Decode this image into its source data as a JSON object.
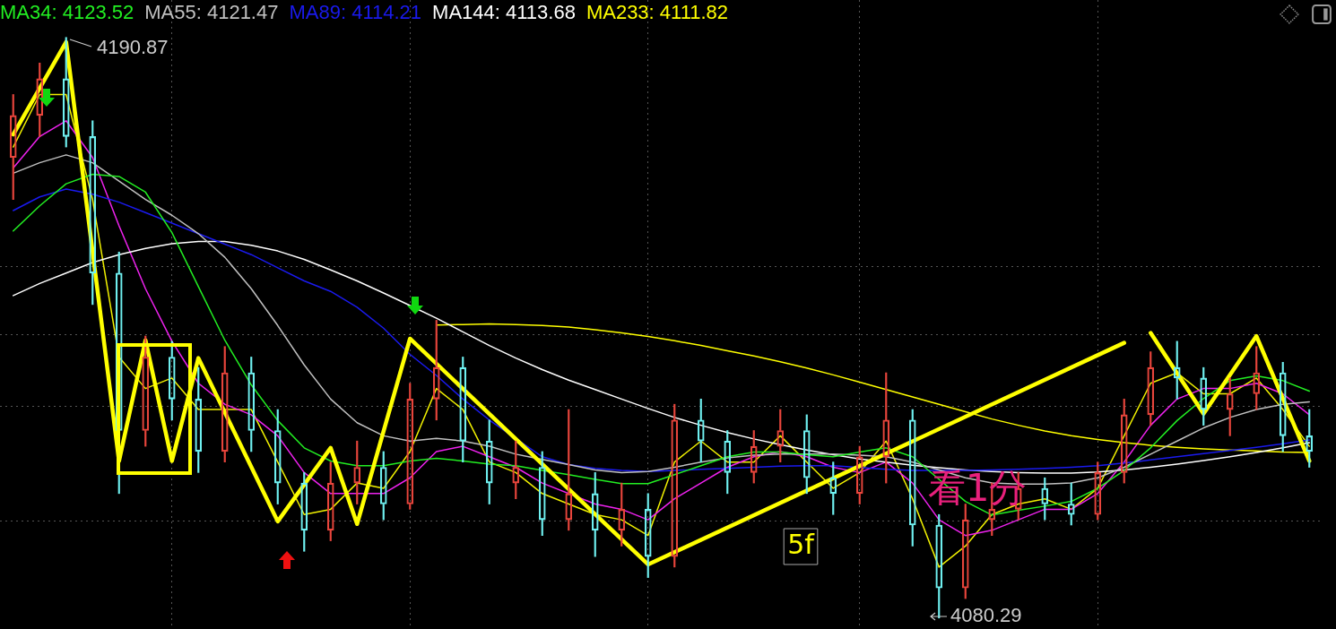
{
  "chart_data": {
    "type": "candlestick",
    "categories": [
      null,
      null,
      null,
      null,
      null,
      null,
      null,
      null,
      null,
      null,
      null,
      null,
      null,
      null,
      null,
      null,
      null,
      null,
      null,
      null,
      null,
      null,
      null,
      null,
      null,
      null,
      null,
      null,
      null,
      null,
      null,
      null,
      null,
      null,
      null,
      null,
      null,
      null,
      null,
      null,
      null,
      null,
      null,
      null,
      null,
      null,
      null,
      null,
      null,
      null
    ],
    "ohlc": [
      [
        4168,
        4180,
        4160,
        4176
      ],
      [
        4176,
        4186,
        4172,
        4183
      ],
      [
        4183,
        4190.87,
        4170,
        4172
      ],
      [
        4172,
        4175,
        4140,
        4146
      ],
      [
        4146,
        4150,
        4104,
        4116
      ],
      [
        4116,
        4134,
        4113,
        4130
      ],
      [
        4130,
        4133,
        4118,
        4122
      ],
      [
        4122,
        4128,
        4108,
        4112
      ],
      [
        4112,
        4132,
        4110,
        4127
      ],
      [
        4127,
        4130,
        4112,
        4116
      ],
      [
        4116,
        4120,
        4102,
        4106
      ],
      [
        4106,
        4108,
        4093,
        4097
      ],
      [
        4097,
        4110,
        4095,
        4106
      ],
      [
        4106,
        4114,
        4102,
        4109
      ],
      [
        4109,
        4112,
        4099,
        4102
      ],
      [
        4102,
        4125,
        4101,
        4122
      ],
      [
        4122,
        4137,
        4118,
        4128
      ],
      [
        4128,
        4130,
        4110,
        4114
      ],
      [
        4114,
        4118,
        4102,
        4106
      ],
      [
        4106,
        4114,
        4103,
        4109
      ],
      [
        4109,
        4112,
        4096,
        4099
      ],
      [
        4099,
        4120,
        4097,
        4104
      ],
      [
        4104,
        4108,
        4092,
        4097
      ],
      [
        4097,
        4106,
        4094,
        4101
      ],
      [
        4101,
        4104,
        4088,
        4092
      ],
      [
        4092,
        4121,
        4090,
        4118
      ],
      [
        4118,
        4122,
        4110,
        4114
      ],
      [
        4114,
        4116,
        4104,
        4108
      ],
      [
        4108,
        4116,
        4106,
        4113
      ],
      [
        4113,
        4120,
        4110,
        4116
      ],
      [
        4116,
        4119,
        4104,
        4107
      ],
      [
        4107,
        4110,
        4100,
        4104
      ],
      [
        4104,
        4113,
        4102,
        4111
      ],
      [
        4111,
        4127,
        4106,
        4118
      ],
      [
        4118,
        4120,
        4094,
        4098
      ],
      [
        4098,
        4100,
        4080.29,
        4086
      ],
      [
        4086,
        4102,
        4084,
        4099
      ],
      [
        4099,
        4106,
        4096,
        4101
      ],
      [
        4101,
        4108,
        4099,
        4105
      ],
      [
        4105,
        4107,
        4099,
        4102
      ],
      [
        4102,
        4106,
        4098,
        4100
      ],
      [
        4100,
        4110,
        4099,
        4108
      ],
      [
        4108,
        4122,
        4106,
        4119
      ],
      [
        4119,
        4131,
        4117,
        4128
      ],
      [
        4128,
        4133,
        4122,
        4126
      ],
      [
        4126,
        4128,
        4117,
        4120
      ],
      [
        4120,
        4126,
        4115,
        4123
      ],
      [
        4123,
        4132,
        4120,
        4127
      ],
      [
        4127,
        4129,
        4112,
        4115
      ],
      [
        4115,
        4120,
        4109,
        4112
      ]
    ],
    "colors": [
      "#e8453c",
      "#e8453c",
      "#6ff0f0",
      "#6ff0f0",
      "#6ff0f0",
      "#e8453c",
      "#6ff0f0",
      "#6ff0f0",
      "#e8453c",
      "#6ff0f0",
      "#6ff0f0",
      "#6ff0f0",
      "#e8453c",
      "#e8453c",
      "#6ff0f0",
      "#e8453c",
      "#e8453c",
      "#6ff0f0",
      "#6ff0f0",
      "#e8453c",
      "#6ff0f0",
      "#e8453c",
      "#6ff0f0",
      "#e8453c",
      "#6ff0f0",
      "#e8453c",
      "#6ff0f0",
      "#6ff0f0",
      "#e8453c",
      "#e8453c",
      "#6ff0f0",
      "#6ff0f0",
      "#e8453c",
      "#e8453c",
      "#6ff0f0",
      "#6ff0f0",
      "#e8453c",
      "#e8453c",
      "#e8453c",
      "#6ff0f0",
      "#6ff0f0",
      "#e8453c",
      "#e8453c",
      "#e8453c",
      "#6ff0f0",
      "#6ff0f0",
      "#e8453c",
      "#e8453c",
      "#6ff0f0",
      "#6ff0f0"
    ],
    "series": [
      {
        "type": "line",
        "name": "MA34: 4123.52",
        "color": "#22ee22",
        "values": [
          4154.0,
          4158.8,
          4163.0,
          4164.8,
          4164.4,
          4161.4,
          4153.7,
          4143.4,
          4133.2,
          4124.7,
          4117.9,
          4112.7,
          4110.2,
          4109.3,
          4109.3,
          4110.2,
          4110.7,
          4110.2,
          4109.6,
          4109.3,
          4108.4,
          4107.6,
          4106.7,
          4105.9,
          4105.9,
          4107.6,
          4109.3,
          4111.0,
          4111.9,
          4111.9,
          4111.4,
          4111.0,
          4111.9,
          4112.7,
          4111.0,
          4106.7,
          4102.5,
          4099.9,
          4100.8,
          4101.6,
          4102.5,
          4105.0,
          4108.4,
          4112.7,
          4117.9,
          4122.1,
          4125.5,
          4126.4,
          4125.5,
          4123.52
        ]
      },
      {
        "type": "line",
        "name": "MA55: 4121.47",
        "color": "#c0c0c0",
        "values": [
          4165,
          4167,
          4168.5,
          4167,
          4163.5,
          4160,
          4157,
          4153.5,
          4149,
          4143,
          4136,
          4128.5,
          4122,
          4117.5,
          4115,
          4114,
          4114.5,
          4114,
          4113,
          4111.5,
          4110.5,
          4109.5,
          4108.5,
          4108,
          4108.2,
          4109,
          4110,
          4110.8,
          4111.3,
          4111.5,
          4111.5,
          4111.5,
          4111.3,
          4111,
          4110,
          4108.5,
          4107,
          4106,
          4105.8,
          4105.8,
          4106,
          4107,
          4109,
          4111.5,
          4114,
          4116.5,
          4118.5,
          4120,
          4121,
          4121.47
        ]
      },
      {
        "type": "line",
        "name": "MA89: 4114.21",
        "color": "#1a1aee",
        "values": [
          4157.9,
          4160.5,
          4162.0,
          4161.0,
          4159.5,
          4157.5,
          4155.5,
          4153.5,
          4151.5,
          4149.5,
          4147.0,
          4144.5,
          4142.5,
          4139.5,
          4135.5,
          4130.5,
          4126.5,
          4122.0,
          4118.0,
          null,
          4111.0,
          4109.5,
          4108.8,
          4108.4,
          4108.2,
          4108.4,
          4108.6,
          4108.8,
          4109.0,
          4109.2,
          4109.3,
          4109.3,
          null,
          4108.6,
          4108.4,
          4108.4,
          4108.4,
          4108.5,
          4108.6,
          4108.8,
          4109.0,
          4109.3,
          4109.8,
          4110.4,
          4111.0,
          4111.6,
          4112.2,
          4112.8,
          4113.5,
          4114.21
        ]
      },
      {
        "type": "line",
        "name": "MA144: 4113.68",
        "color": "#ffffff",
        "values": [
          4141.7,
          4144,
          4146,
          4148,
          4149.5,
          4150.7,
          4151.6,
          4152.0,
          4152.0,
          4151.3,
          4150.2,
          4148.6,
          4146.6,
          4144.5,
          4142.2,
          4139.8,
          4137.4,
          4134.8,
          4132.2,
          4129.8,
          4127.6,
          4125.6,
          4123.8,
          4122.0,
          4120.2,
          4118.5,
          4117.0,
          4115.6,
          4114.4,
          4113.3,
          4112.3,
          4111.4,
          4110.6,
          4110.0,
          4109.4,
          4108.9,
          4108.5,
          4108.2,
          4108.0,
          4107.9,
          4107.9,
          4108.1,
          4108.5,
          4109.0,
          4109.6,
          4110.3,
          4111.0,
          4111.8,
          4112.7,
          4113.68
        ]
      },
      {
        "type": "line",
        "name": "MA233: 4111.82",
        "color": "#ffff00",
        "values": [
          null,
          null,
          null,
          null,
          null,
          null,
          null,
          null,
          null,
          null,
          null,
          null,
          null,
          null,
          null,
          null,
          4136.1,
          4136.2,
          4136.3,
          4136.2,
          4136.0,
          4135.7,
          4135.2,
          4134.6,
          4133.9,
          4133.1,
          4132.2,
          4131.2,
          4130.2,
          4129.1,
          4127.9,
          4126.6,
          4125.2,
          4123.8,
          4122.4,
          4121.0,
          4119.6,
          4118.2,
          4117.0,
          4115.9,
          4115.0,
          4114.3,
          4113.7,
          4113.2,
          4112.8,
          4112.5,
          4112.3,
          4112.1,
          4111.9,
          4111.82
        ]
      },
      {
        "type": "line",
        "color": "#ee22ee",
        "values": [
          4166,
          4172,
          4175,
          4168,
          4155,
          4143,
          4133,
          4125,
          4121,
          4119,
          4115,
          4108,
          4104,
          4104,
          4104,
          4107,
          4112,
          4113,
          4111,
          4109,
          4106,
          null,
          4102,
          4101,
          4099,
          4103,
          4106,
          4109,
          4111,
          4112,
          4111,
          4109,
          4108,
          4110,
          4106,
          4099,
          4096,
          4097,
          4099,
          4101,
          4101,
          4104,
          4110,
          4117,
          4122,
          4124,
          4124,
          4125,
          4123,
          4119
        ]
      },
      {
        "type": "line",
        "color": "#f0f000",
        "values": [
          4170,
          4180,
          4180,
          4160,
          4130,
          4124,
          4126,
          4120,
          4120,
          4120,
          4110,
          4100,
          4101,
          4106,
          4105,
          4112,
          4124,
          4120,
          4110,
          4108,
          4104,
          4102,
          4100,
          4099,
          4096,
          4110,
          4114,
          4110,
          4110,
          4115,
          4110,
          4105,
          4108,
          4114,
          4103,
          4090,
          4094,
          4100,
          4102,
          4103,
          4101,
          4105,
          4115,
          4125,
          4127,
          4123,
          4123,
          4126,
          4120,
          4113
        ]
      },
      {
        "type": "line",
        "color": "#ffff00",
        "values": [
          4172.4,
          null,
          4190,
          null,
          4110.2,
          4133.2,
          4110.2,
          4129.8,
          null,
          null,
          4098.7,
          null,
          4112.7,
          4098.2,
          null,
          4133.5,
          null,
          null,
          null,
          null,
          null,
          null,
          null,
          null,
          4090.5,
          null,
          null,
          null,
          null,
          null,
          null,
          null,
          null,
          null,
          null,
          null,
          null,
          null,
          null,
          null,
          null,
          null,
          4132.7,
          null,
          null,
          null,
          null,
          null,
          null,
          null
        ]
      },
      {
        "type": "line",
        "color": "#ffff00",
        "values": [
          null,
          null,
          null,
          null,
          null,
          null,
          null,
          null,
          null,
          null,
          null,
          null,
          null,
          null,
          null,
          null,
          null,
          null,
          null,
          null,
          null,
          null,
          null,
          null,
          null,
          null,
          null,
          null,
          null,
          null,
          null,
          null,
          null,
          null,
          null,
          null,
          null,
          null,
          null,
          null,
          null,
          null,
          null,
          4134.6,
          null,
          4119.2,
          null,
          4134.0,
          null,
          4110.2
        ]
      }
    ],
    "ylim": [
      4078.2,
      4198.0
    ],
    "yticks": [
      {
        "value": 4098.7,
        "label": null
      },
      {
        "value": 4120.6,
        "label": null
      },
      {
        "value": 4134.2,
        "label": null
      },
      {
        "value": 4147.2,
        "label": null
      }
    ],
    "tick_labels": false,
    "grid": true,
    "legend": "top left",
    "marker": "none",
    "annotations": [
      "4190.87",
      "4080.29",
      "5f",
      "看1分"
    ]
  }
}
